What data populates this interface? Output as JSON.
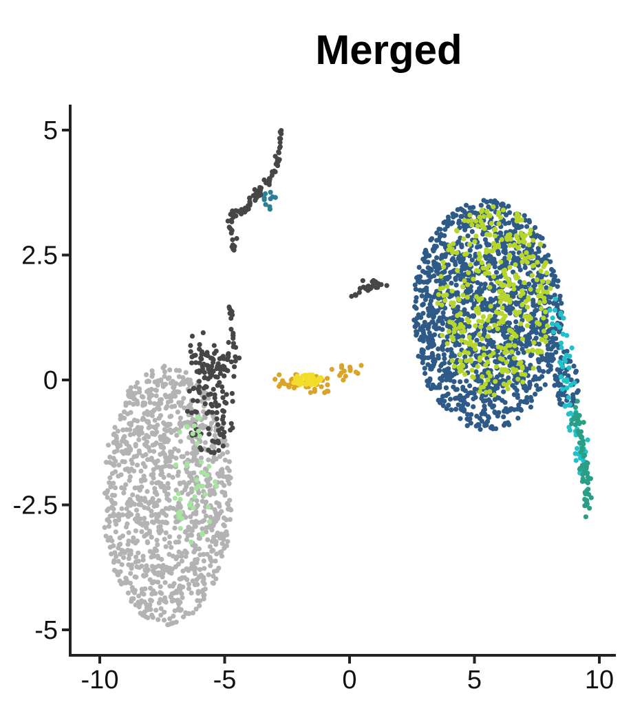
{
  "chart_data": {
    "type": "scatter",
    "title": "Merged",
    "xlabel": "",
    "ylabel": "",
    "xlim": [
      -10.3,
      10.7
    ],
    "ylim": [
      -5.5,
      5.4
    ],
    "x_ticks": [
      "-10",
      "-5",
      "0",
      "5",
      "10"
    ],
    "x_tick_values": [
      -10,
      -5,
      0,
      5,
      10
    ],
    "y_ticks": [
      "5",
      "2.5",
      "0",
      "-2.5",
      "-5"
    ],
    "y_tick_values": [
      5,
      2.5,
      0,
      -2.5,
      -5
    ],
    "grid": false,
    "legend": "none",
    "colors": {
      "light_gray": "#b3b3b3",
      "dark_gray": "#464646",
      "dark_blue": "#2e5a87",
      "lime": "#b6d62d",
      "cyan": "#22c0c8",
      "teal": "#2a9f86",
      "gold": "#d9a427",
      "yellow": "#f2dd2a",
      "light_green": "#a7e4a0",
      "blue_teal": "#2a7f92"
    },
    "clusters": [
      {
        "color_key": "light_gray",
        "shape": "ellipse",
        "cx": -7.3,
        "cy": -2.3,
        "rx": 2.6,
        "ry": 2.6,
        "n": 1100
      },
      {
        "color_key": "dark_gray",
        "shape": "ellipse",
        "cx": -5.6,
        "cy": -0.6,
        "rx": 1.0,
        "ry": 0.9,
        "n": 90
      },
      {
        "color_key": "dark_gray",
        "shape": "path",
        "points": [
          [
            -6.3,
            0.6
          ],
          [
            -5.2,
            0.2
          ],
          [
            -4.5,
            0.5
          ]
        ],
        "spread": 0.35,
        "n": 70
      },
      {
        "color_key": "dark_gray",
        "shape": "path",
        "points": [
          [
            -2.7,
            5.0
          ],
          [
            -2.9,
            4.3
          ],
          [
            -3.4,
            3.9
          ],
          [
            -4.2,
            3.4
          ],
          [
            -4.8,
            3.2
          ],
          [
            -4.6,
            2.6
          ]
        ],
        "spread": 0.1,
        "n": 95
      },
      {
        "color_key": "dark_gray",
        "shape": "path",
        "points": [
          [
            -4.8,
            1.6
          ],
          [
            -4.6,
            0.6
          ]
        ],
        "spread": 0.08,
        "n": 14
      },
      {
        "color_key": "blue_teal",
        "shape": "ellipse",
        "cx": -3.2,
        "cy": 3.6,
        "rx": 0.3,
        "ry": 0.25,
        "n": 10
      },
      {
        "color_key": "gold",
        "shape": "path",
        "points": [
          [
            -3.0,
            -0.1
          ],
          [
            -2.0,
            0.0
          ],
          [
            -1.2,
            -0.2
          ],
          [
            -0.4,
            0.1
          ],
          [
            0.4,
            0.2
          ]
        ],
        "spread": 0.2,
        "n": 50
      },
      {
        "color_key": "yellow",
        "shape": "ellipse",
        "cx": -1.7,
        "cy": 0.0,
        "rx": 0.6,
        "ry": 0.12,
        "n": 40
      },
      {
        "color_key": "dark_gray",
        "shape": "path",
        "points": [
          [
            0.1,
            1.7
          ],
          [
            0.7,
            1.9
          ],
          [
            1.4,
            2.0
          ]
        ],
        "spread": 0.2,
        "n": 25
      },
      {
        "color_key": "dark_blue",
        "shape": "ellipse",
        "cx": 5.5,
        "cy": 1.3,
        "rx": 3.0,
        "ry": 2.3,
        "n": 1450
      },
      {
        "color_key": "dark_blue",
        "shape": "ellipse",
        "cx": 8.7,
        "cy": 0.0,
        "rx": 0.5,
        "ry": 0.6,
        "n": 60
      },
      {
        "color_key": "lime",
        "shape": "ellipse",
        "cx": 5.8,
        "cy": 1.6,
        "rx": 2.3,
        "ry": 1.9,
        "n": 380
      },
      {
        "color_key": "cyan",
        "shape": "path",
        "points": [
          [
            8.2,
            1.4
          ],
          [
            8.6,
            0.5
          ],
          [
            8.9,
            -0.5
          ],
          [
            9.1,
            -1.2
          ],
          [
            9.3,
            -1.8
          ]
        ],
        "spread": 0.3,
        "n": 70
      },
      {
        "color_key": "teal",
        "shape": "path",
        "points": [
          [
            9.0,
            -0.6
          ],
          [
            9.3,
            -1.3
          ],
          [
            9.5,
            -2.0
          ],
          [
            9.5,
            -2.6
          ]
        ],
        "spread": 0.15,
        "n": 70
      },
      {
        "color_key": "light_green",
        "shape": "ellipse",
        "cx": -6.2,
        "cy": -2.0,
        "rx": 0.9,
        "ry": 1.3,
        "n": 45
      }
    ]
  }
}
